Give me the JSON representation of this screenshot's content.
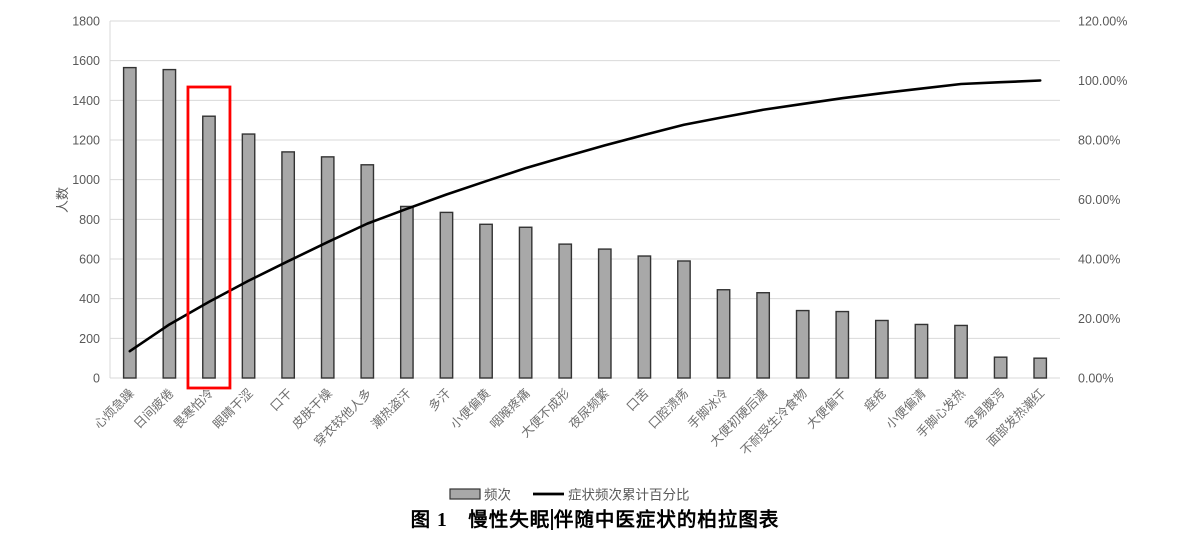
{
  "caption": {
    "part1": "图 1　慢性失眠",
    "part2": "伴随中医症状的柏拉图表"
  },
  "chart_data": {
    "type": "bar",
    "subtype": "pareto (bar + cumulative percentage line)",
    "title": "图 1 慢性失眠伴随中医症状的柏拉图表",
    "categories": [
      "心烦急躁",
      "日间疲倦",
      "畏寒怕冷",
      "眼睛干涩",
      "口干",
      "皮肤干燥",
      "穿衣较他人多",
      "潮热盗汗",
      "多汗",
      "小便偏黄",
      "咽喉疼痛",
      "大便不成形",
      "夜尿频繁",
      "口苦",
      "口腔溃疡",
      "手脚冰冷",
      "大便初硬后溏",
      "不耐受生冷食物",
      "大便偏干",
      "痤疮",
      "小便偏清",
      "手脚心发热",
      "容易腹泻",
      "面部发热潮红"
    ],
    "series": [
      {
        "name": "频次",
        "type": "bar",
        "axis": "left",
        "values": [
          1565,
          1555,
          1320,
          1230,
          1140,
          1115,
          1075,
          865,
          835,
          775,
          760,
          675,
          650,
          615,
          590,
          445,
          430,
          340,
          335,
          290,
          270,
          265,
          105,
          100
        ]
      },
      {
        "name": "症状频次累计百分比",
        "type": "line",
        "axis": "right",
        "values_percent": [
          9.02,
          17.99,
          25.6,
          32.69,
          39.26,
          45.69,
          51.89,
          56.88,
          61.69,
          66.16,
          70.54,
          74.43,
          78.18,
          81.72,
          85.13,
          87.69,
          90.17,
          92.13,
          94.06,
          95.73,
          97.29,
          98.82,
          99.42,
          100.0
        ]
      }
    ],
    "left_axis": {
      "label": "人数",
      "min": 0,
      "max": 1800,
      "tick_step": 200,
      "ticks": [
        "0",
        "200",
        "400",
        "600",
        "800",
        "1000",
        "1200",
        "1400",
        "1600",
        "1800"
      ]
    },
    "right_axis": {
      "min": 0,
      "max": 120,
      "tick_step": 20,
      "ticks": [
        "0.00%",
        "20.00%",
        "40.00%",
        "60.00%",
        "80.00%",
        "100.00%",
        "120.00%"
      ]
    },
    "legend": [
      {
        "swatch": "bar",
        "label": "频次"
      },
      {
        "swatch": "line",
        "label": "症状频次累计百分比"
      }
    ],
    "highlight_box": {
      "category": "畏寒怕冷",
      "category_index": 2,
      "color": "#ff0000"
    },
    "grid": "horizontal",
    "legend_position": "bottom",
    "colors": {
      "bar_fill": "#a8a8a8",
      "bar_border": "#333333",
      "line": "#000000",
      "gridline": "#d9d9d9",
      "axis_text": "#595959",
      "category_text": "#6e6e6e",
      "highlight": "#ff0000",
      "caption_text": "#000000"
    }
  }
}
